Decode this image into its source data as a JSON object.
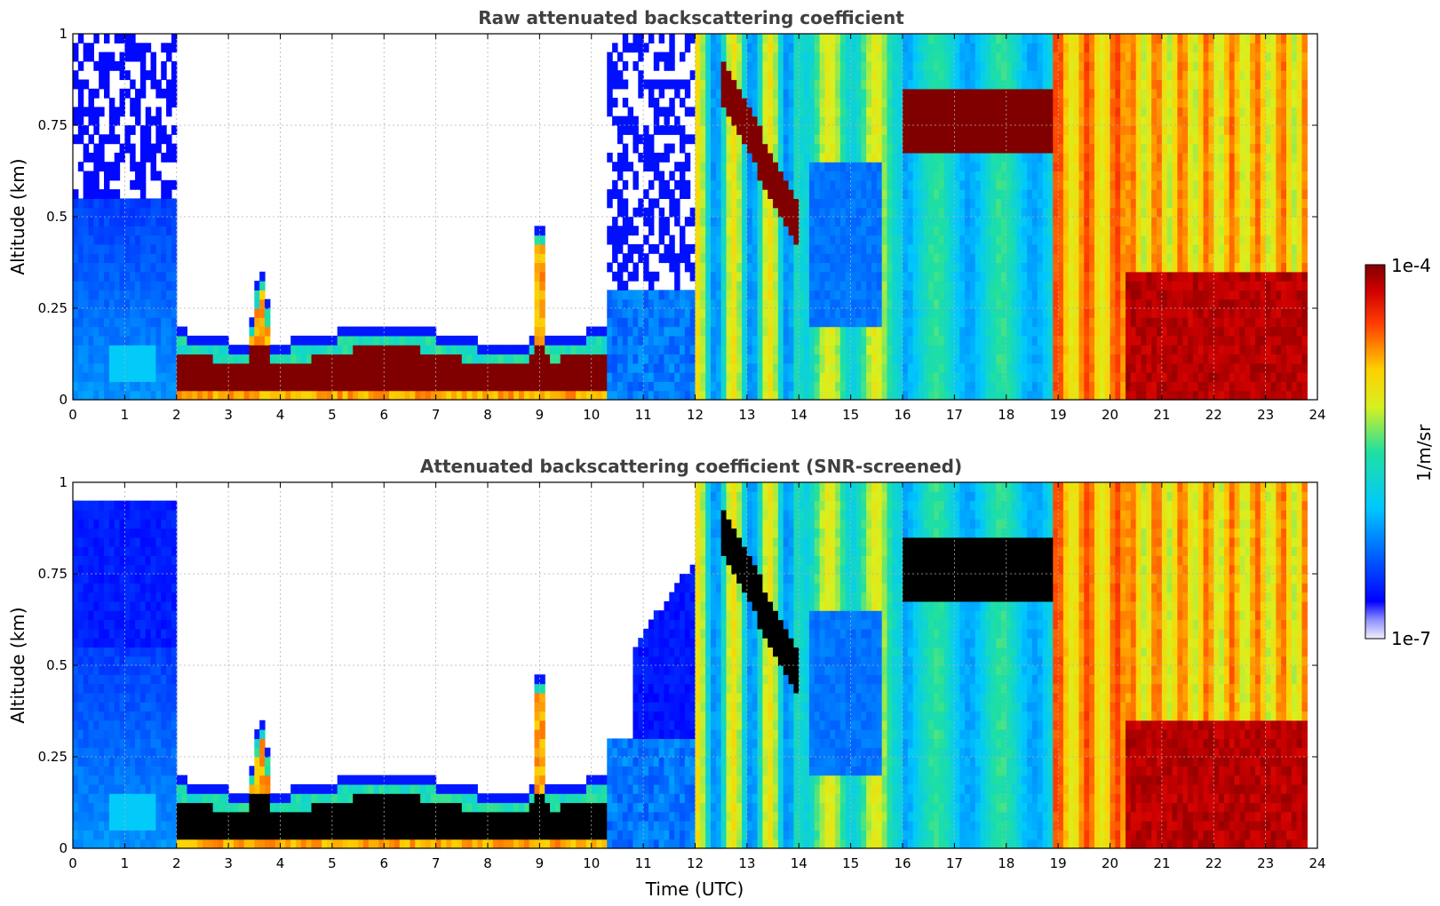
{
  "chart_data": [
    {
      "type": "heatmap",
      "title": "Raw attenuated backscattering coefficient",
      "xlabel": "",
      "ylabel": "Altitude (km)",
      "xlim": [
        0,
        24
      ],
      "ylim": [
        0,
        1
      ],
      "x_ticks": [
        "0",
        "1",
        "2",
        "3",
        "4",
        "5",
        "6",
        "7",
        "8",
        "9",
        "10",
        "11",
        "12",
        "13",
        "14",
        "15",
        "16",
        "17",
        "18",
        "19",
        "20",
        "21",
        "22",
        "23",
        "24"
      ],
      "y_ticks": [
        "0",
        "0.25",
        "0.5",
        "0.75",
        "1"
      ],
      "grid": true,
      "colorscale": "jet",
      "log_range": [
        -7,
        -4
      ]
    },
    {
      "type": "heatmap",
      "title": "Attenuated backscattering coefficient (SNR-screened)",
      "xlabel": "Time (UTC)",
      "ylabel": "Altitude (km)",
      "xlim": [
        0,
        24
      ],
      "ylim": [
        0,
        1
      ],
      "x_ticks": [
        "0",
        "1",
        "2",
        "3",
        "4",
        "5",
        "6",
        "7",
        "8",
        "9",
        "10",
        "11",
        "12",
        "13",
        "14",
        "15",
        "16",
        "17",
        "18",
        "19",
        "20",
        "21",
        "22",
        "23",
        "24"
      ],
      "y_ticks": [
        "0",
        "0.25",
        "0.5",
        "0.75",
        "1"
      ],
      "grid": true,
      "colorscale": "jet",
      "log_range": [
        -7,
        -4
      ]
    }
  ],
  "colorbar": {
    "label": "1/m/sr",
    "max_label": "1e-4",
    "min_label": "1e-7"
  }
}
